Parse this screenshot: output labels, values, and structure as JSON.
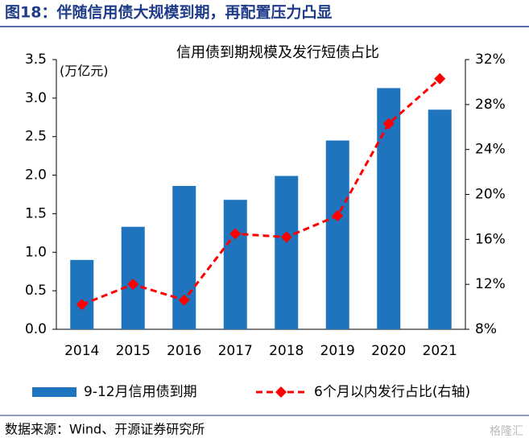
{
  "figure_title": "图18：伴随信用债大规模到期，再配置压力凸显",
  "source": "数据来源：Wind、开源证券研究所",
  "watermark": "格隆汇",
  "chart_data": {
    "type": "bar_line",
    "title": "信用债到期规模及发行短债占比",
    "y_label": "(万亿元)",
    "categories": [
      "2014",
      "2015",
      "2016",
      "2017",
      "2018",
      "2019",
      "2020",
      "2021"
    ],
    "series": [
      {
        "name": "9-12月信用债到期",
        "type": "bar",
        "color": "#1f74be",
        "values": [
          0.9,
          1.33,
          1.86,
          1.68,
          1.99,
          2.45,
          3.13,
          2.85
        ]
      },
      {
        "name": "6个月以内发行占比(右轴)",
        "type": "line",
        "axis": "y2",
        "color": "#ff0000",
        "values": [
          10.2,
          12.0,
          10.6,
          16.5,
          16.2,
          18.1,
          26.3,
          30.3
        ]
      }
    ],
    "ylim": [
      0,
      3.5
    ],
    "yticks": [
      {
        "value": 0,
        "label": "0.0"
      },
      0.5,
      {
        "value": 1,
        "label": "1.0"
      },
      1.5,
      {
        "value": 2,
        "label": "2.0"
      },
      2.5,
      {
        "value": 3,
        "label": "3.0"
      },
      3.5
    ],
    "y2lim": [
      8,
      32
    ],
    "y2ticks": [
      {
        "value": 8,
        "label": "8%"
      },
      {
        "value": 12,
        "label": "12%"
      },
      {
        "value": 16,
        "label": "16%"
      },
      {
        "value": 20,
        "label": "20%"
      },
      {
        "value": 24,
        "label": "24%"
      },
      {
        "value": 28,
        "label": "28%"
      },
      {
        "value": 32,
        "label": "32%"
      }
    ],
    "legend": "bottom"
  }
}
